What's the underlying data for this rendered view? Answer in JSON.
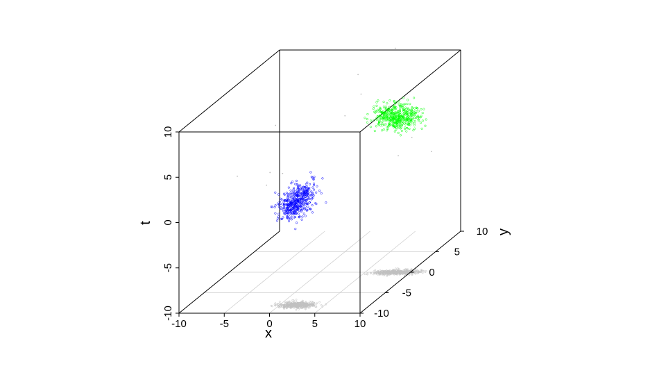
{
  "chart_data": {
    "type": "scatter",
    "projection": "3d-perspective",
    "xlabel": "x",
    "ylabel": "y",
    "zlabel": "t",
    "xlim": [
      -10,
      10
    ],
    "ylim": [
      -10,
      10
    ],
    "zlim": [
      -10,
      10
    ],
    "x_ticks": [
      "-10",
      "-5",
      "0",
      "5",
      "10"
    ],
    "y_ticks": [
      "-10",
      "-5",
      "0",
      "5",
      "10"
    ],
    "z_ticks": [
      "-10",
      "-5",
      "0",
      "5",
      "10"
    ],
    "floor_grid": true,
    "floor_projection": true,
    "projection_color": "#c0c0c0",
    "series": [
      {
        "color": "#0000ff",
        "marker": "small-circle",
        "center": [
          2,
          -8,
          1.5
        ],
        "spread": [
          1.0,
          0.4,
          0.9
        ]
      },
      {
        "color": "#00ff00",
        "marker": "small-circle",
        "center": [
          8.5,
          0,
          7.2
        ],
        "spread": [
          1.2,
          0.3,
          0.7
        ]
      }
    ],
    "noise_points": [
      [
        -5.5,
        0,
        1.0
      ],
      [
        -6,
        2,
        5.3
      ],
      [
        2,
        4,
        10
      ],
      [
        5,
        6,
        12
      ],
      [
        7,
        3,
        1.5
      ],
      [
        -3,
        -2,
        1.8
      ],
      [
        4,
        1,
        9.2
      ],
      [
        -8,
        -2,
        1.5
      ],
      [
        8.5,
        3,
        3.5
      ],
      [
        9,
        6,
        0.6
      ],
      [
        0,
        5,
        5.0
      ],
      [
        -7,
        2,
        -1.3
      ]
    ]
  }
}
